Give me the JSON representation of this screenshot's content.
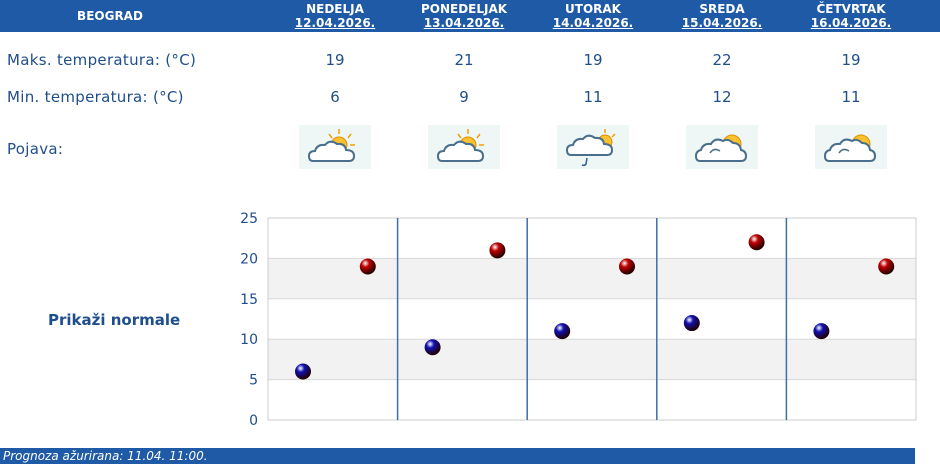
{
  "header": {
    "city": "BEOGRAD",
    "days": [
      {
        "name": "NEDELJA",
        "date": "12.04.2026."
      },
      {
        "name": "PONEDELJAK",
        "date": "13.04.2026."
      },
      {
        "name": "UTORAK",
        "date": "14.04.2026."
      },
      {
        "name": "SREDA",
        "date": "15.04.2026."
      },
      {
        "name": "ČETVRTAK",
        "date": "16.04.2026."
      }
    ]
  },
  "rows": {
    "max_label": "Maks. temperatura: (°C)",
    "min_label": "Min. temperatura: (°C)",
    "phenomenon_label": "Pojava:",
    "max": [
      "19",
      "21",
      "19",
      "22",
      "19"
    ],
    "min": [
      "6",
      "9",
      "11",
      "12",
      "11"
    ],
    "icons": [
      "partly-cloudy-sun-icon",
      "partly-cloudy-sun-icon",
      "cloud-sun-light-rain-icon",
      "cloudy-sun-icon",
      "cloudy-sun-icon"
    ]
  },
  "normals_button": "Prikaži normale",
  "footer": "Prognoza ažurirana:  11.04. 11:00.",
  "chart_data": {
    "type": "scatter",
    "categories": [
      "12.04.2026.",
      "13.04.2026.",
      "14.04.2026.",
      "15.04.2026.",
      "16.04.2026."
    ],
    "ylim": [
      0,
      25
    ],
    "yticks": [
      "0",
      "5",
      "10",
      "15",
      "20",
      "25"
    ],
    "series": [
      {
        "values": [
          6,
          9,
          11,
          12,
          11
        ],
        "color": "#1010b0"
      },
      {
        "values": [
          19,
          21,
          19,
          22,
          19
        ],
        "color": "#c00000"
      }
    ],
    "grid": true,
    "band_color": "#f2f2f2"
  }
}
